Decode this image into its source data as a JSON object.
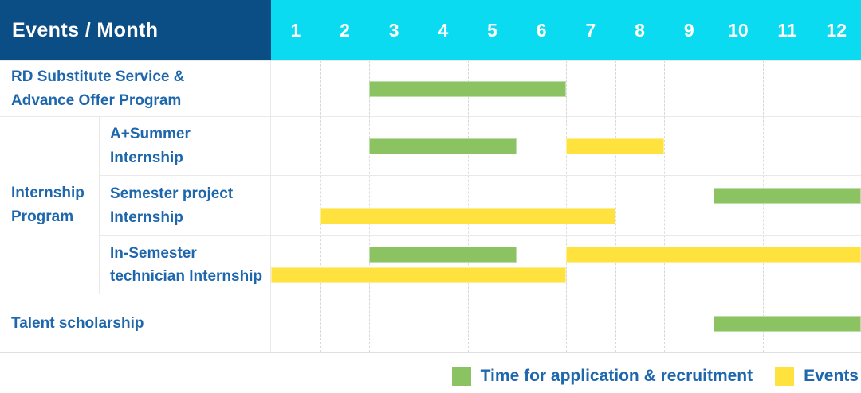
{
  "header": {
    "label": "Events / Month",
    "months": [
      "1",
      "2",
      "3",
      "4",
      "5",
      "6",
      "7",
      "8",
      "9",
      "10",
      "11",
      "12"
    ]
  },
  "colors": {
    "header_bg": "#0b4d85",
    "months_bg": "#0adbf1",
    "green": "#8bc262",
    "yellow": "#ffe23d",
    "label_text": "#1e67ad"
  },
  "legend": {
    "items": [
      {
        "kind": "green",
        "label": "Time for application & recruitment"
      },
      {
        "kind": "yellow",
        "label": "Events"
      }
    ]
  },
  "chart_data": {
    "type": "gantt",
    "x_unit": "month",
    "x_range": [
      1,
      12
    ],
    "grid": "dashed-vertical-month-lines",
    "legend_position": "bottom-right",
    "bar_kinds": {
      "green": "Time for application & recruitment",
      "yellow": "Events"
    },
    "rows": [
      {
        "label": "RD Substitute Service &\nAdvance Offer Program",
        "group": null,
        "bars": [
          {
            "kind": "green",
            "start": 3,
            "end": 6,
            "lane": "center"
          }
        ]
      },
      {
        "label": "A+Summer\nInternship",
        "group": "Internship\nProgram",
        "bars": [
          {
            "kind": "green",
            "start": 3,
            "end": 5,
            "lane": "center"
          },
          {
            "kind": "yellow",
            "start": 7,
            "end": 8,
            "lane": "center"
          }
        ]
      },
      {
        "label": "Semester project\nInternship",
        "group": "Internship\nProgram",
        "bars": [
          {
            "kind": "green",
            "start": 10,
            "end": 12,
            "lane": "top"
          },
          {
            "kind": "yellow",
            "start": 2,
            "end": 7,
            "lane": "bottom"
          }
        ]
      },
      {
        "label": "In-Semester\ntechnician Internship",
        "group": "Internship\nProgram",
        "bars": [
          {
            "kind": "green",
            "start": 3,
            "end": 5,
            "lane": "top"
          },
          {
            "kind": "yellow",
            "start": 7,
            "end": 12,
            "lane": "top"
          },
          {
            "kind": "yellow",
            "start": 1,
            "end": 6,
            "lane": "bottom"
          }
        ]
      },
      {
        "label": "Talent scholarship",
        "group": null,
        "bars": [
          {
            "kind": "green",
            "start": 10,
            "end": 12,
            "lane": "center"
          }
        ]
      }
    ]
  }
}
